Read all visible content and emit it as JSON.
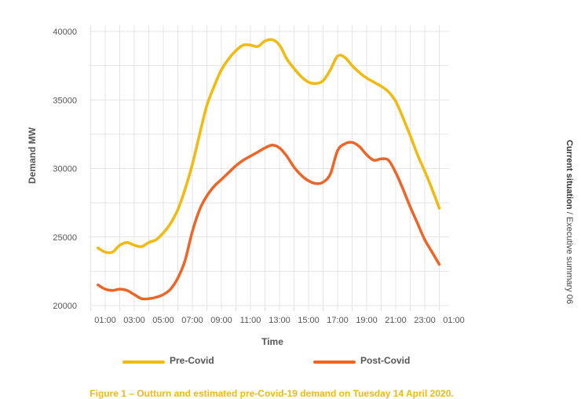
{
  "chart_data": {
    "type": "line",
    "title": "",
    "xlabel": "Time",
    "ylabel": "Demand MW",
    "x_tick_labels": [
      "01:00",
      "03:00",
      "05:00",
      "07:00",
      "09:00",
      "11:00",
      "13:00",
      "15:00",
      "17:00",
      "19:00",
      "21:00",
      "23:00",
      "01:00"
    ],
    "y_tick_labels": [
      "20000",
      "25000",
      "30000",
      "35000",
      "40000"
    ],
    "ylim": [
      20000,
      40000
    ],
    "x_unit": "hour of day (next-day 01:00 = 25)",
    "xlim": [
      0,
      26
    ],
    "grid": true,
    "legend_position": "bottom",
    "series": [
      {
        "name": "Pre-Covid",
        "color": "#f2b90f",
        "x": [
          0.5,
          1,
          1.5,
          2,
          2.5,
          3,
          3.5,
          4,
          4.5,
          5,
          5.5,
          6,
          6.5,
          7,
          7.5,
          8,
          8.5,
          9,
          9.5,
          10,
          10.5,
          11,
          11.5,
          12,
          12.5,
          13,
          13.5,
          14,
          14.5,
          15,
          15.5,
          16,
          16.5,
          17,
          17.5,
          18,
          18.5,
          19,
          19.5,
          20,
          20.5,
          21,
          21.5,
          22,
          22.5,
          23,
          23.5,
          24
        ],
        "values": [
          24200,
          23900,
          23900,
          24400,
          24600,
          24400,
          24300,
          24600,
          24800,
          25300,
          26000,
          27000,
          28500,
          30300,
          32500,
          34600,
          36000,
          37200,
          38000,
          38600,
          39000,
          39000,
          38900,
          39300,
          39400,
          39000,
          38000,
          37300,
          36700,
          36300,
          36200,
          36400,
          37200,
          38200,
          38100,
          37500,
          37000,
          36600,
          36300,
          36000,
          35600,
          34900,
          33700,
          32400,
          31000,
          29800,
          28500,
          27100
        ]
      },
      {
        "name": "Post-Covid",
        "color": "#ee6527",
        "x": [
          0.5,
          1,
          1.5,
          2,
          2.5,
          3,
          3.5,
          4,
          4.5,
          5,
          5.5,
          6,
          6.5,
          7,
          7.5,
          8,
          8.5,
          9,
          9.5,
          10,
          10.5,
          11,
          11.5,
          12,
          12.5,
          13,
          13.5,
          14,
          14.5,
          15,
          15.5,
          16,
          16.5,
          17,
          17.5,
          18,
          18.5,
          19,
          19.5,
          20,
          20.5,
          21,
          21.5,
          22,
          22.5,
          23,
          23.5,
          24
        ],
        "values": [
          21500,
          21200,
          21100,
          21200,
          21100,
          20800,
          20500,
          20500,
          20600,
          20800,
          21200,
          22000,
          23300,
          25400,
          27000,
          28000,
          28700,
          29200,
          29700,
          30200,
          30600,
          30900,
          31200,
          31500,
          31700,
          31500,
          30900,
          30100,
          29500,
          29100,
          28900,
          29000,
          29600,
          31300,
          31800,
          31900,
          31600,
          31000,
          30600,
          30700,
          30600,
          29700,
          28500,
          27200,
          26000,
          24800,
          23900,
          23000
        ]
      }
    ]
  },
  "caption": "Figure 1 – Outturn and estimated pre-Covid-19 demand on Tuesday 14 April 2020.",
  "side_text": {
    "section": "Current situation",
    "separator": "/",
    "subsection": "Executive summary",
    "page": "06"
  }
}
